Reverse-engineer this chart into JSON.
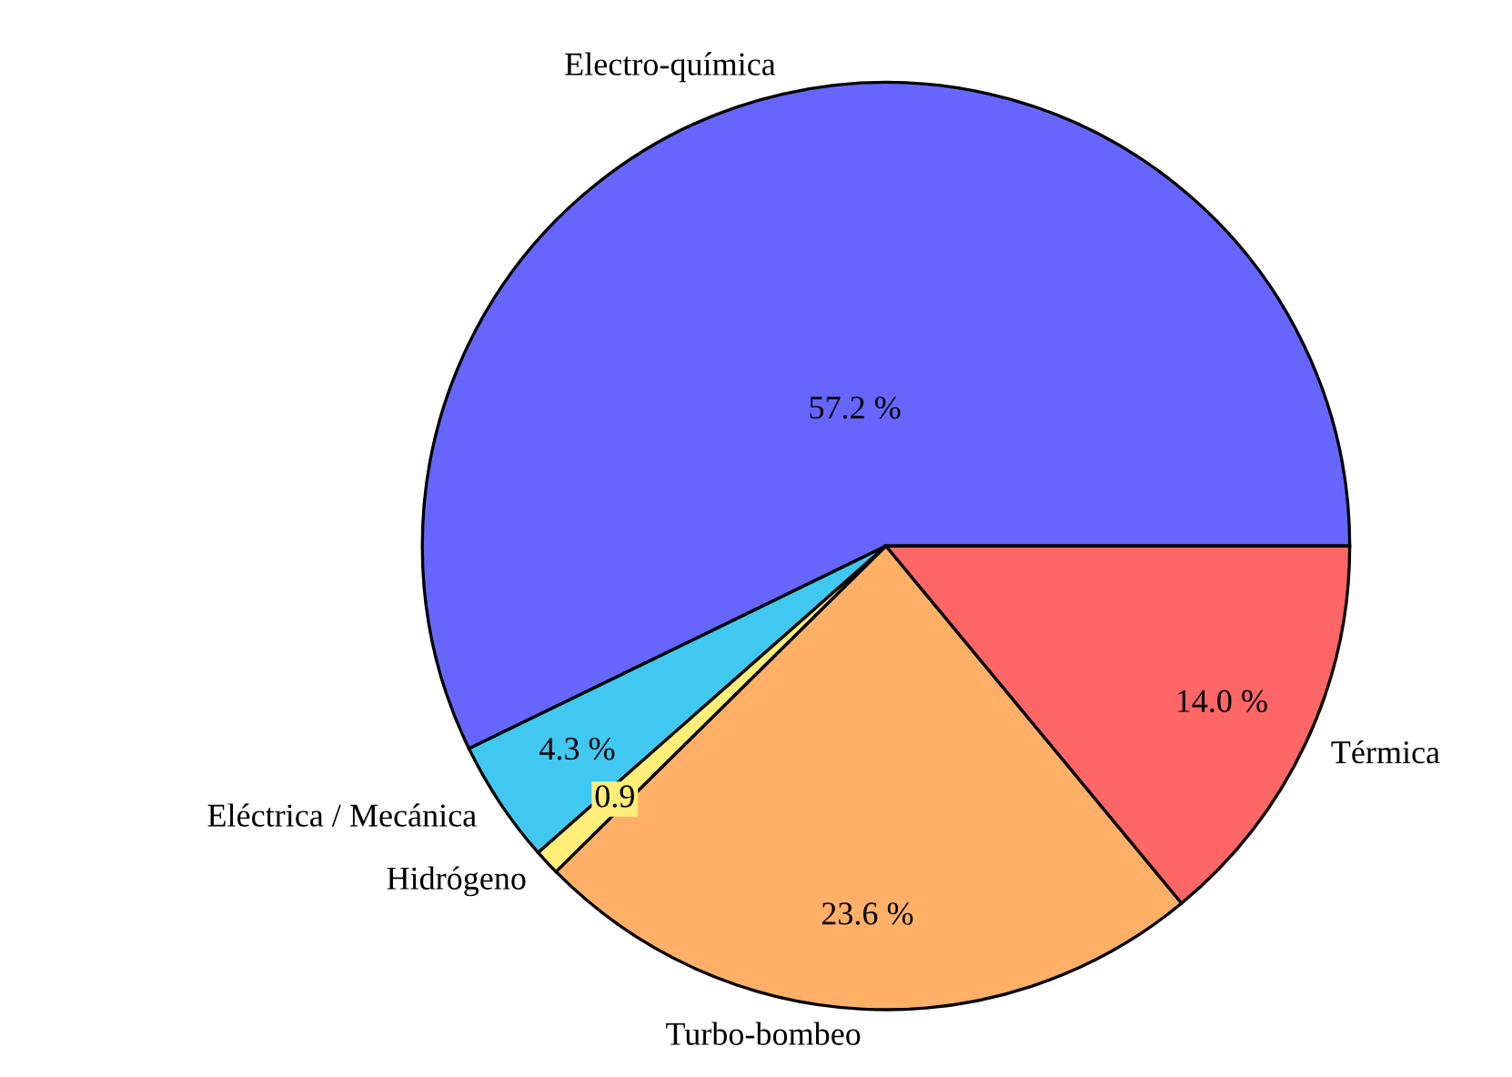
{
  "chart_data": {
    "type": "pie",
    "categories": [
      "Electro-química",
      "Eléctrica / Mecánica",
      "Hidrógeno",
      "Turbo-bombeo",
      "Térmica"
    ],
    "values": [
      57.2,
      4.3,
      0.9,
      23.6,
      14.0
    ],
    "colors": [
      "#6666ff",
      "#40c8f0",
      "#ffee77",
      "#ffb066",
      "#ff6666"
    ],
    "value_labels": [
      "57.2 %",
      "4.3 %",
      "0.9",
      "23.6 %",
      "14.0 %"
    ]
  }
}
